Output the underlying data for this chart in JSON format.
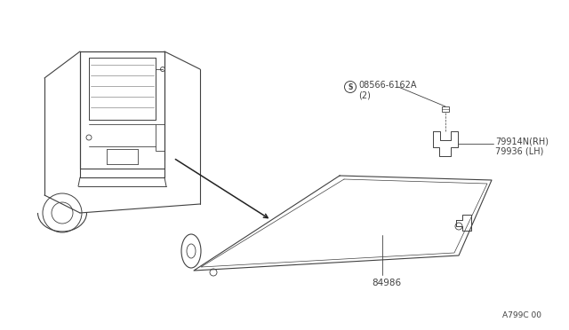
{
  "bg_color": "#ffffff",
  "line_color": "#404040",
  "label_08566_1": "08566-6162A",
  "label_08566_2": "(2)",
  "label_79914_1": "79914N(RH)",
  "label_79914_2": "79936 (LH)",
  "label_84986": "84986",
  "label_a799c": "A799C 00",
  "font_size": 7.0,
  "font_size_small": 6.5
}
